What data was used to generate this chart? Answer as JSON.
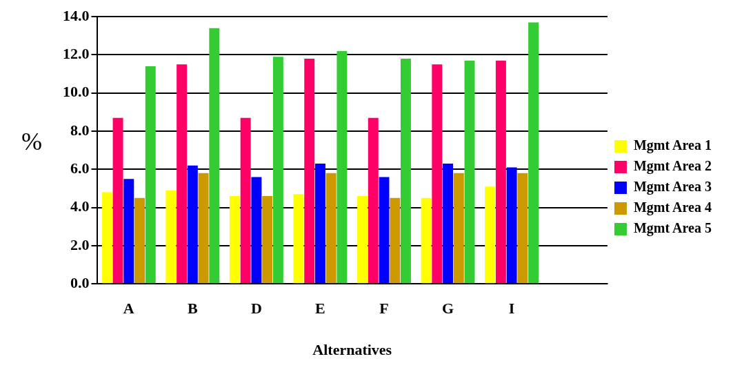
{
  "chart_data": {
    "type": "bar",
    "xlabel": "Alternatives",
    "ylabel": "%",
    "categories": [
      "A",
      "B",
      "D",
      "E",
      "F",
      "G",
      "I",
      null
    ],
    "series": [
      {
        "name": "Mgmt Area 1",
        "color": "#ffff00",
        "values": [
          4.8,
          4.9,
          4.6,
          4.7,
          4.6,
          4.5,
          5.1,
          null
        ]
      },
      {
        "name": "Mgmt Area 2",
        "color": "#ff0066",
        "values": [
          8.7,
          11.5,
          8.7,
          11.8,
          8.7,
          11.5,
          11.7,
          null
        ]
      },
      {
        "name": "Mgmt Area 3",
        "color": "#0000ff",
        "values": [
          5.5,
          6.2,
          5.6,
          6.3,
          5.6,
          6.3,
          6.1,
          null
        ]
      },
      {
        "name": "Mgmt Area 4",
        "color": "#cc9900",
        "values": [
          4.5,
          5.8,
          4.6,
          5.8,
          4.5,
          5.8,
          5.8,
          null
        ]
      },
      {
        "name": "Mgmt Area 5",
        "color": "#33cc33",
        "values": [
          11.4,
          13.4,
          11.9,
          12.2,
          11.8,
          11.7,
          13.7,
          null
        ]
      }
    ],
    "ylim": [
      0,
      14
    ],
    "yticks": [
      {
        "value": 0,
        "label": "0.0"
      },
      {
        "value": 2,
        "label": "2.0"
      },
      {
        "value": 4,
        "label": "4.0"
      },
      {
        "value": 6,
        "label": "6.0"
      },
      {
        "value": 8,
        "label": "8.0"
      },
      {
        "value": 10,
        "label": "10.0"
      },
      {
        "value": 12,
        "label": "12.0"
      },
      {
        "value": 14,
        "label": "14.0"
      }
    ],
    "grid": "y",
    "legend": "right"
  }
}
